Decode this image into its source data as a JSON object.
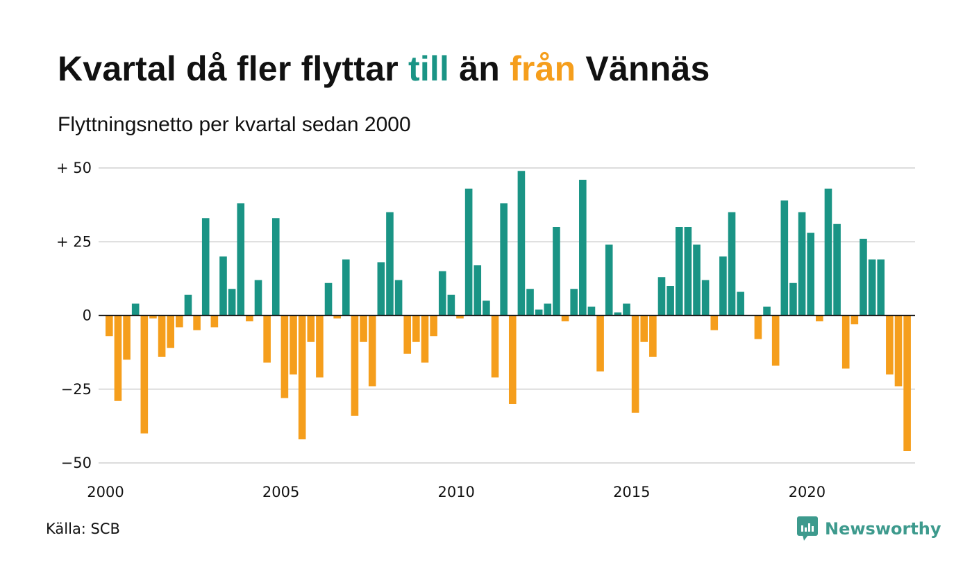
{
  "header": {
    "title_part1": "Kvartal då fler flyttar ",
    "title_till": "till",
    "title_part2": " än ",
    "title_fran": "från",
    "title_part3": " Vännäs",
    "subtitle": "Flyttningsnetto per kvartal sedan 2000"
  },
  "footer": {
    "source": "Källa: SCB",
    "brand": "Newsworthy"
  },
  "colors": {
    "positive": "#1a9485",
    "negative": "#f59e1c",
    "grid": "#dcdcdc",
    "brand": "#3d9a8d"
  },
  "chart_data": {
    "type": "bar",
    "title": "",
    "xlabel": "",
    "ylabel": "",
    "ylim": [
      -50,
      50
    ],
    "yticks": [
      {
        "value": 50,
        "label": "+ 50"
      },
      {
        "value": 25,
        "label": "+ 25"
      },
      {
        "value": 0,
        "label": "0"
      },
      {
        "value": -25,
        "label": "−25"
      },
      {
        "value": -50,
        "label": "−50"
      }
    ],
    "xticks": [
      {
        "value": 2000,
        "label": "2000"
      },
      {
        "value": 2005,
        "label": "2005"
      },
      {
        "value": 2010,
        "label": "2010"
      },
      {
        "value": 2015,
        "label": "2015"
      },
      {
        "value": 2020,
        "label": "2020"
      }
    ],
    "start_year": 2000,
    "end_year": 2023,
    "grid": true,
    "values": [
      -7,
      -29,
      -15,
      4,
      -40,
      -1,
      -14,
      -11,
      -4,
      7,
      -5,
      33,
      -4,
      20,
      9,
      38,
      -2,
      12,
      -16,
      33,
      -28,
      -20,
      -42,
      -9,
      -21,
      11,
      -1,
      19,
      -34,
      -9,
      -24,
      18,
      35,
      12,
      -13,
      -9,
      -16,
      -7,
      15,
      7,
      -1,
      43,
      17,
      5,
      -21,
      38,
      -30,
      49,
      9,
      2,
      4,
      30,
      -2,
      9,
      46,
      3,
      -19,
      24,
      1,
      4,
      -33,
      -9,
      -14,
      13,
      10,
      30,
      30,
      24,
      12,
      -5,
      20,
      35,
      8,
      0,
      -8,
      3,
      -17,
      39,
      11,
      35,
      28,
      -2,
      43,
      31,
      -18,
      -3,
      26,
      19,
      19,
      -20,
      -24,
      -46
    ]
  }
}
